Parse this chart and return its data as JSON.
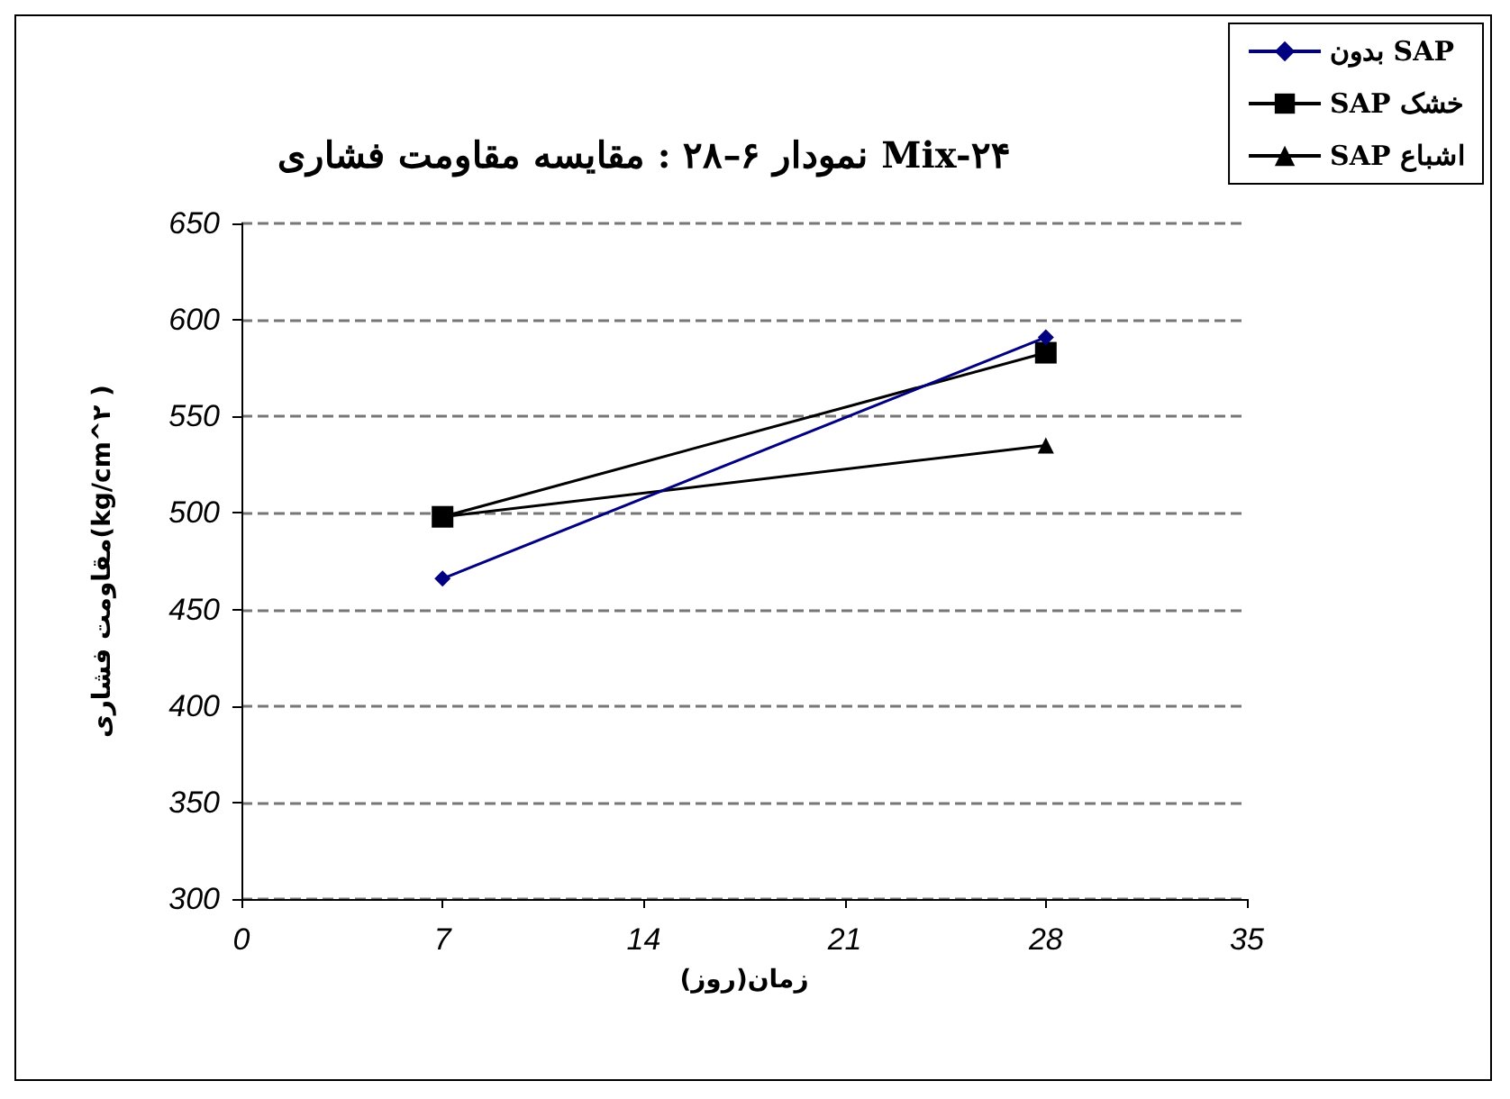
{
  "chart_data": {
    "type": "line",
    "title": "نمودار ۶–۲۸ : مقایسه مقاومت فشاری Mix-۲۴",
    "xlabel": "زمان(روز)",
    "ylabel": "مقاومت فشاری(kg/cm^۲ )",
    "x": [
      7,
      28
    ],
    "series": [
      {
        "name": "بدون SAP",
        "color": "#000080",
        "values": [
          466,
          591
        ],
        "marker": "diamond"
      },
      {
        "name": "SAP خشک",
        "color": "#000000",
        "values": [
          498,
          583
        ],
        "marker": "square"
      },
      {
        "name": "SAP اشباع",
        "color": "#000000",
        "values": [
          498,
          535
        ],
        "marker": "triangle"
      }
    ],
    "xlim": [
      0,
      35
    ],
    "xticks": [
      0,
      7,
      14,
      21,
      28,
      35
    ],
    "ylim": [
      300,
      650
    ],
    "yticks": [
      300,
      350,
      400,
      450,
      500,
      550,
      600,
      650
    ],
    "grid": "y",
    "legend": "top right",
    "line_style": "solid"
  }
}
